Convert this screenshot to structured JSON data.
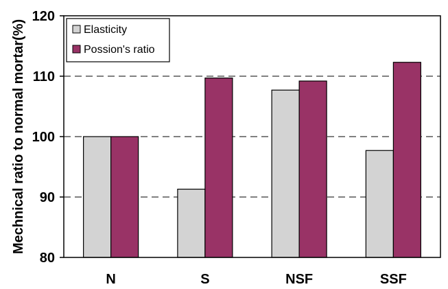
{
  "chart_data": {
    "type": "bar",
    "title": "",
    "xlabel": "",
    "ylabel": "Mechnical ratio to normal mortar(%)",
    "categories": [
      "N",
      "S",
      "NSF",
      "SSF"
    ],
    "series": [
      {
        "name": "Elasticity",
        "color": "#d3d3d3",
        "values": [
          100,
          91.3,
          107.7,
          97.7
        ]
      },
      {
        "name": "Possion's ratio",
        "color": "#993366",
        "values": [
          100,
          109.7,
          109.2,
          112.3
        ]
      }
    ],
    "ylim": [
      80,
      120
    ],
    "yticks": [
      80,
      90,
      100,
      110,
      120
    ],
    "gridlines": [
      90,
      100,
      110
    ],
    "grid": "dashed horizontal",
    "legend": "top-left"
  }
}
